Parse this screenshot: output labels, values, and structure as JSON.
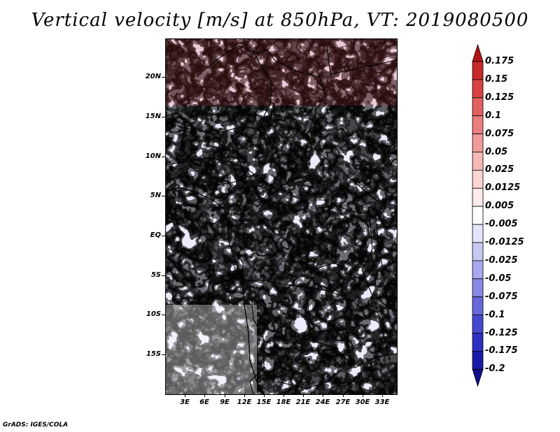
{
  "title": "Vertical velocity [m/s] at 850hPa, VT: 2019080500",
  "lat_labels": [
    "20N",
    "15N",
    "10N",
    "5N",
    "EQ",
    "5S",
    "10S",
    "15S"
  ],
  "lon_labels": [
    "3E",
    "6E",
    "9E",
    "12E",
    "15E",
    "18E",
    "21E",
    "24E",
    "27E",
    "30E",
    "33E"
  ],
  "colorbar": {
    "labels": [
      "0.175",
      "0.15",
      "0.125",
      "0.1",
      "0.075",
      "0.05",
      "0.025",
      "0.0125",
      "0.005",
      "-0.005",
      "-0.0125",
      "-0.025",
      "-0.05",
      "-0.075",
      "-0.1",
      "-0.125",
      "-0.175",
      "-0.2"
    ],
    "colors": [
      "#b31515",
      "#c82828",
      "#d94242",
      "#e46060",
      "#ec7e7e",
      "#f29a9a",
      "#f7b8b8",
      "#fbd4d4",
      "#fdeaea",
      "#ffffff",
      "#e4e4fb",
      "#c8c8f5",
      "#a8a8ef",
      "#8888e6",
      "#6868dc",
      "#4848cf",
      "#2e2ec2",
      "#1a1aa8",
      "#10108e"
    ]
  },
  "credit": "GrADS: IGES/COLA"
}
